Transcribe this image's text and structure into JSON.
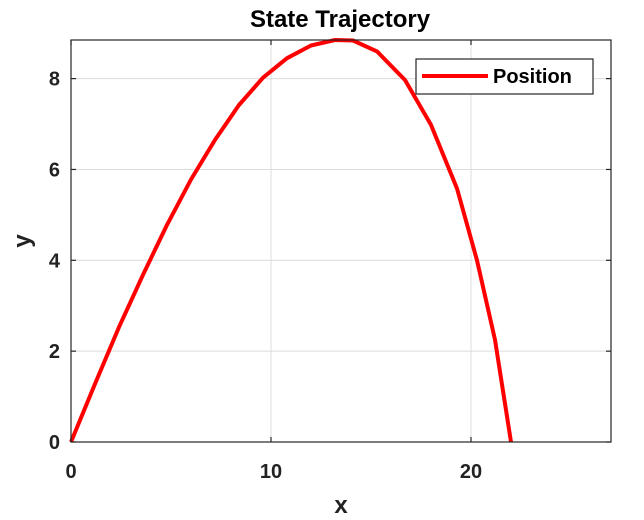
{
  "chart_data": {
    "type": "line",
    "title": "State Trajectory",
    "xlabel": "x",
    "ylabel": "y",
    "xlim": [
      0,
      27
    ],
    "ylim": [
      0,
      8.85
    ],
    "xticks": [
      0,
      10,
      20
    ],
    "yticks": [
      0,
      2,
      4,
      6,
      8
    ],
    "grid": true,
    "legend": {
      "position": "top-right",
      "entries": [
        "Position"
      ]
    },
    "series": [
      {
        "name": "Position",
        "color": "#ff0000",
        "x": [
          0,
          1.2,
          2.4,
          3.6,
          4.8,
          6.0,
          7.2,
          8.4,
          9.6,
          10.8,
          12.0,
          13.2,
          14.1,
          15.3,
          16.7,
          18.0,
          19.3,
          20.3,
          21.2,
          22.0
        ],
        "y": [
          0,
          1.28,
          2.53,
          3.68,
          4.78,
          5.78,
          6.65,
          7.42,
          8.02,
          8.45,
          8.73,
          8.85,
          8.84,
          8.6,
          7.97,
          6.98,
          5.58,
          4.0,
          2.25,
          0
        ]
      }
    ]
  }
}
